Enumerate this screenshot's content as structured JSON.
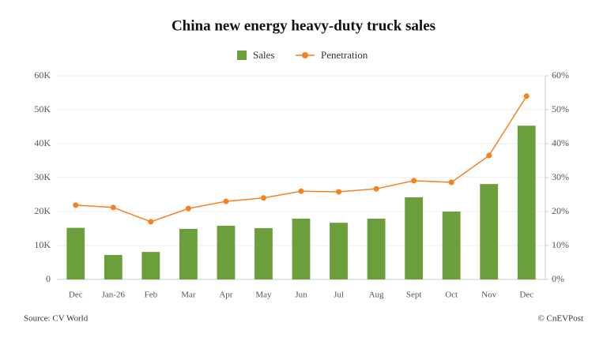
{
  "chart_data": {
    "type": "bar-line",
    "title": "China new energy heavy-duty truck sales",
    "categories": [
      "Dec",
      "Jan-26",
      "Feb",
      "Mar",
      "Apr",
      "May",
      "Jun",
      "Jul",
      "Aug",
      "Sept",
      "Oct",
      "Nov",
      "Dec"
    ],
    "series": [
      {
        "name": "Sales",
        "type": "bar",
        "color": "#6a9f3c",
        "axis": "y",
        "values": [
          15200,
          7200,
          8100,
          14900,
          15800,
          15100,
          17900,
          16700,
          17900,
          24200,
          20000,
          28100,
          45300
        ]
      },
      {
        "name": "Penetration",
        "type": "line",
        "color": "#f5811f",
        "axis": "y2",
        "values": [
          21.9,
          21.2,
          17,
          20.9,
          23,
          24,
          26,
          25.8,
          26.7,
          29.1,
          28.6,
          36.5,
          54
        ]
      }
    ],
    "ylim": [
      0,
      60000
    ],
    "yticks": [
      0,
      {
        "value": 10000,
        "label": "10K"
      },
      {
        "value": 20000,
        "label": "20K"
      },
      {
        "value": 30000,
        "label": "30K"
      },
      {
        "value": 40000,
        "label": "40K"
      },
      {
        "value": 50000,
        "label": "50K"
      },
      {
        "value": 60000,
        "label": "60K"
      }
    ],
    "y2lim": [
      0,
      60
    ],
    "y2ticks": [
      {
        "value": 0,
        "label": "0%"
      },
      {
        "value": 10,
        "label": "10%"
      },
      {
        "value": 20,
        "label": "20%"
      },
      {
        "value": 30,
        "label": "30%"
      },
      {
        "value": 40,
        "label": "40%"
      },
      {
        "value": 50,
        "label": "50%"
      },
      {
        "value": 60,
        "label": "60%"
      }
    ],
    "grid": true,
    "legend": "top",
    "source": "Source: CV World",
    "credit": "© CnEVPost"
  }
}
